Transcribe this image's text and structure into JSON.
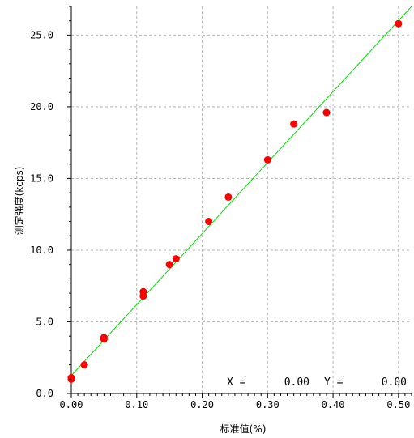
{
  "chart_data": {
    "type": "scatter",
    "xlabel": "标准值(%)",
    "ylabel": "测定强度(kcps)",
    "xlim": [
      0,
      0.52
    ],
    "ylim": [
      0,
      27
    ],
    "x_ticks": [
      0.0,
      0.1,
      0.2,
      0.3,
      0.4,
      0.5
    ],
    "x_tick_labels": [
      "0.00",
      "0.10",
      "0.20",
      "0.30",
      "0.40",
      "0.50"
    ],
    "y_ticks": [
      0,
      5,
      10,
      15,
      20,
      25
    ],
    "y_tick_labels": [
      "0.0",
      "5.0",
      "10.0",
      "15.0",
      "20.0",
      "25.0"
    ],
    "grid": true,
    "grid_style": "dashed",
    "points": [
      {
        "x": 0.0,
        "y": 1.0
      },
      {
        "x": 0.0,
        "y": 1.1
      },
      {
        "x": 0.02,
        "y": 2.0
      },
      {
        "x": 0.05,
        "y": 3.8
      },
      {
        "x": 0.05,
        "y": 3.9
      },
      {
        "x": 0.11,
        "y": 6.8
      },
      {
        "x": 0.11,
        "y": 7.1
      },
      {
        "x": 0.15,
        "y": 9.0
      },
      {
        "x": 0.16,
        "y": 9.4
      },
      {
        "x": 0.21,
        "y": 12.0
      },
      {
        "x": 0.24,
        "y": 13.7
      },
      {
        "x": 0.3,
        "y": 16.3
      },
      {
        "x": 0.34,
        "y": 18.8
      },
      {
        "x": 0.39,
        "y": 19.6
      },
      {
        "x": 0.5,
        "y": 25.8
      }
    ],
    "fit_line": {
      "x": [
        0.0,
        0.52
      ],
      "y": [
        1.25,
        27.0
      ]
    },
    "point_color": "#ff0000",
    "line_color": "#00dd00",
    "readout": {
      "x_label": "X =",
      "x_value": "0.00",
      "y_label": "Y =",
      "y_value": "0.00"
    }
  }
}
